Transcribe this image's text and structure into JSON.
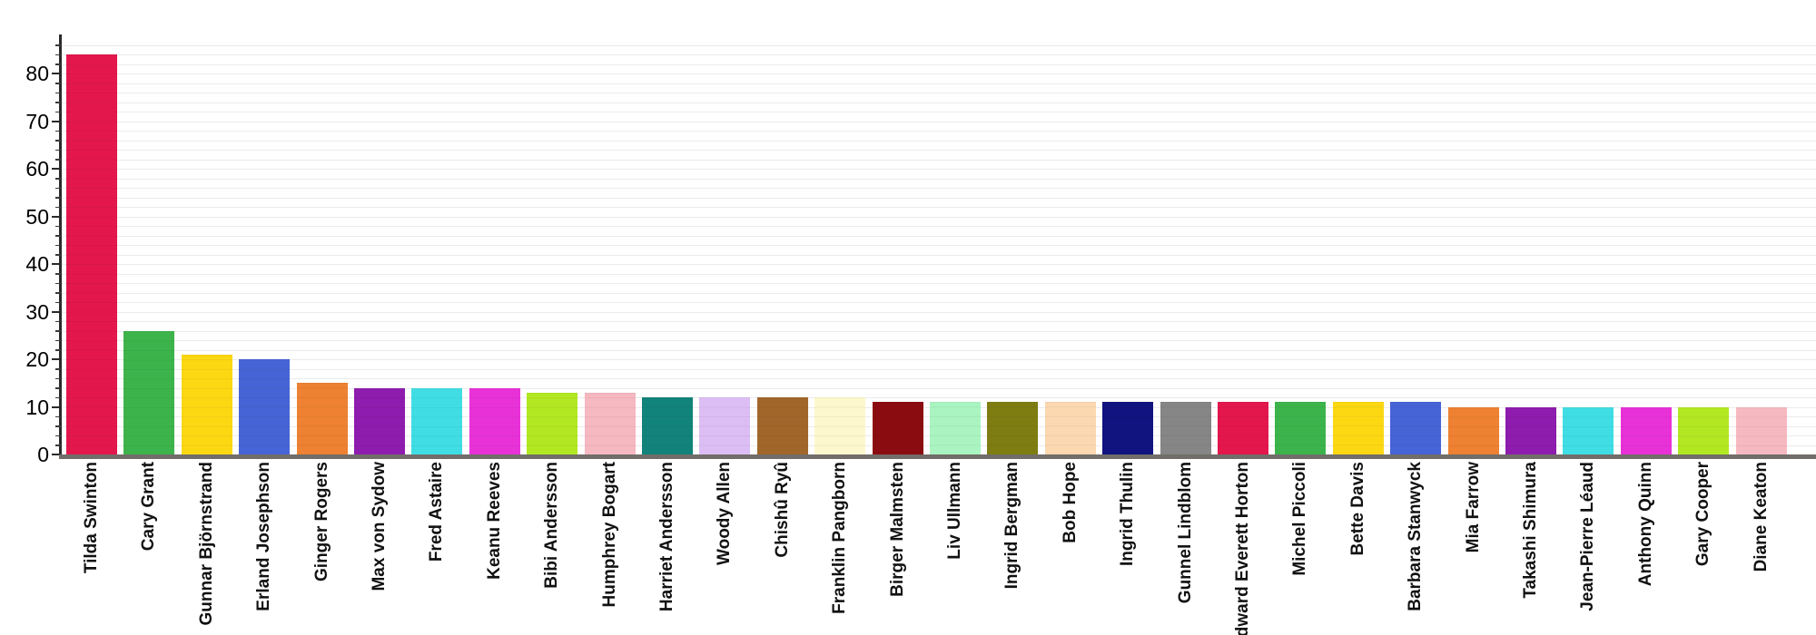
{
  "chart_data": {
    "type": "bar",
    "title": "",
    "xlabel": "",
    "ylabel": "",
    "legend_position": "none",
    "grid": "horizontal lines every 2 units, light gray",
    "x_label_rotation": -90,
    "ylim": [
      0,
      88
    ],
    "y_ticks": [
      0,
      10,
      20,
      30,
      40,
      50,
      60,
      70,
      80
    ],
    "y_minor_tick_step": 2,
    "categories": [
      "Tilda Swinton",
      "Cary Grant",
      "Gunnar Björnstrand",
      "Erland Josephson",
      "Ginger Rogers",
      "Max von Sydow",
      "Fred Astaire",
      "Keanu Reeves",
      "Bibi Andersson",
      "Humphrey Bogart",
      "Harriet Andersson",
      "Woody Allen",
      "Chishû Ryû",
      "Franklin Pangborn",
      "Birger Malmsten",
      "Liv Ullmann",
      "Ingrid Bergman",
      "Bob Hope",
      "Ingrid Thulin",
      "Gunnel Lindblom",
      "Edward Everett Horton",
      "Michel Piccoli",
      "Bette Davis",
      "Barbara Stanwyck",
      "Mia Farrow",
      "Takashi Shimura",
      "Jean-Pierre Léaud",
      "Anthony Quinn",
      "Gary Cooper",
      "Diane Keaton"
    ],
    "values": [
      84,
      26,
      21,
      20,
      15,
      14,
      14,
      14,
      13,
      13,
      12,
      12,
      12,
      12,
      11,
      11,
      11,
      11,
      11,
      11,
      11,
      11,
      11,
      11,
      10,
      10,
      10,
      10,
      10,
      10
    ],
    "bar_colors": [
      "#e4174d",
      "#3cb44b",
      "#fcd813",
      "#4764d6",
      "#ee8132",
      "#8e1cae",
      "#40dde4",
      "#e832d8",
      "#b2e822",
      "#f6b8c1",
      "#12837a",
      "#dcbef5",
      "#a1672a",
      "#fdf7cd",
      "#8b0c10",
      "#aaf4c1",
      "#7e7d12",
      "#fcd8b1",
      "#111380",
      "#868686",
      "#e4174d",
      "#3cb44b",
      "#fcd813",
      "#4764d6",
      "#ee8132",
      "#8e1cae",
      "#40dde4",
      "#e832d8",
      "#b2e822",
      "#f6b8c1"
    ],
    "axis_colors": {
      "axis_line": "#2a2a2a",
      "baseline": "#716d68",
      "gridline": "#ebebeb",
      "tick_label": "#000000",
      "category_label": "#111111"
    }
  }
}
